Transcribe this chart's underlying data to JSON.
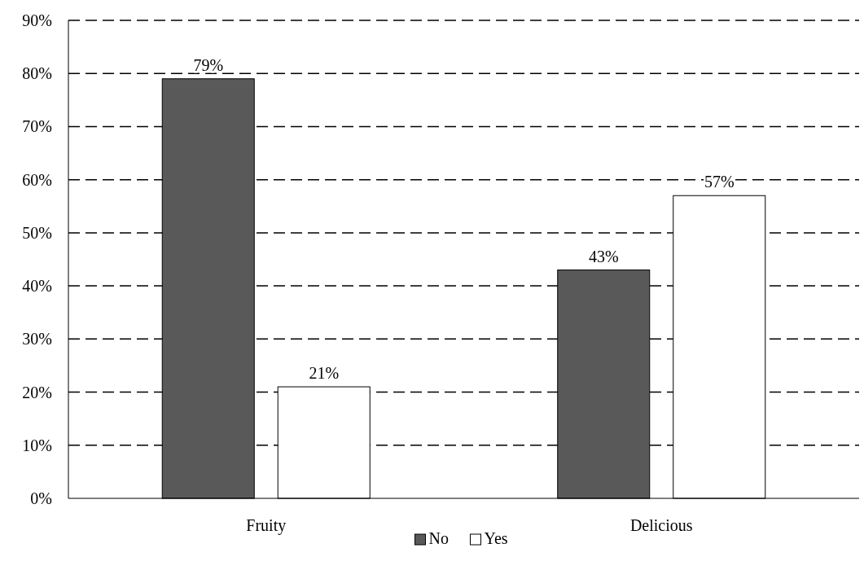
{
  "chart_data": {
    "type": "bar",
    "categories": [
      "Fruity",
      "Delicious"
    ],
    "series": [
      {
        "name": "No",
        "color": "#595959",
        "values": [
          79,
          43
        ],
        "value_labels": [
          "79%",
          "43%"
        ]
      },
      {
        "name": "Yes",
        "color": "#ffffff",
        "values": [
          21,
          57
        ],
        "value_labels": [
          "21%",
          "57%"
        ]
      }
    ],
    "ylim": [
      0,
      90
    ],
    "yticks": [
      {
        "value": 0,
        "label": "0%"
      },
      {
        "value": 10,
        "label": "10%"
      },
      {
        "value": 20,
        "label": "20%"
      },
      {
        "value": 30,
        "label": "30%"
      },
      {
        "value": 40,
        "label": "40%"
      },
      {
        "value": 50,
        "label": "50%"
      },
      {
        "value": 60,
        "label": "60%"
      },
      {
        "value": 70,
        "label": "70%"
      },
      {
        "value": 80,
        "label": "80%"
      },
      {
        "value": 90,
        "label": "90%"
      }
    ],
    "grid": "y",
    "line_style": "dashed",
    "legend": "bottom"
  }
}
